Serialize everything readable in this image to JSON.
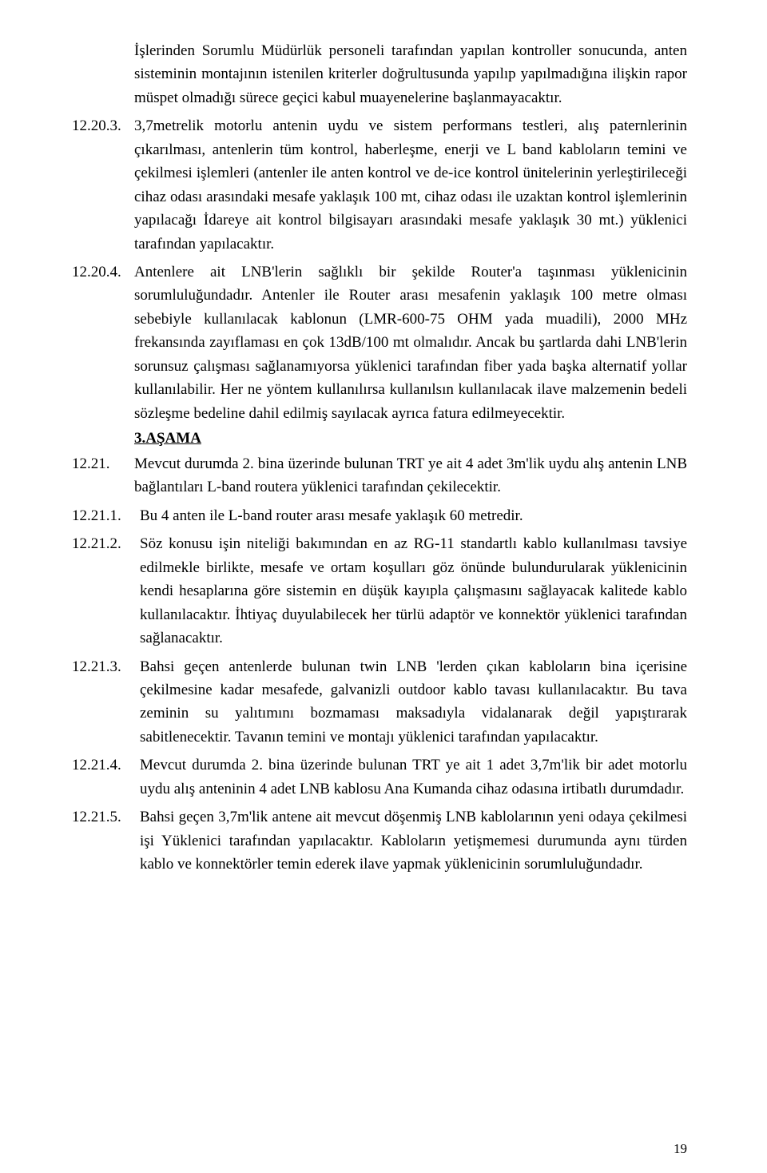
{
  "document": {
    "background_color": "#ffffff",
    "text_color": "#000000",
    "font_family": "Times New Roman",
    "body_font_size_pt": 14,
    "line_height": 1.55,
    "page_number": "19",
    "p_cont_1": "İşlerinden Sorumlu Müdürlük personeli tarafından yapılan kontroller sonucunda, anten sisteminin montajının istenilen kriterler doğrultusunda yapılıp yapılmadığına ilişkin rapor müspet olmadığı sürece geçici kabul muayenelerine başlanmayacaktır.",
    "i12_20_3_num": "12.20.3.",
    "i12_20_3": "3,7metrelik motorlu antenin uydu ve sistem performans testleri, alış paternlerinin çıkarılması, antenlerin tüm kontrol, haberleşme, enerji ve L band kabloların temini ve çekilmesi işlemleri (antenler ile anten kontrol ve de-ice kontrol ünitelerinin yerleştirileceği cihaz odası arasındaki mesafe yaklaşık 100 mt, cihaz odası ile uzaktan kontrol işlemlerinin yapılacağı İdareye ait kontrol bilgisayarı arasındaki mesafe yaklaşık 30 mt.) yüklenici tarafından yapılacaktır.",
    "i12_20_4_num": "12.20.4.",
    "i12_20_4": "Antenlere ait LNB'lerin sağlıklı bir şekilde Router'a taşınması yüklenicinin sorumluluğundadır. Antenler ile Router arası mesafenin yaklaşık 100 metre olması sebebiyle kullanılacak kablonun (LMR-600-75 OHM yada muadili), 2000 MHz frekansında zayıflaması en çok 13dB/100 mt olmalıdır. Ancak bu şartlarda dahi LNB'lerin sorunsuz çalışması sağlanamıyorsa yüklenici tarafından fiber yada başka alternatif yollar kullanılabilir. Her ne yöntem kullanılırsa kullanılsın kullanılacak ilave malzemenin bedeli sözleşme bedeline dahil edilmiş sayılacak ayrıca fatura edilmeyecektir.",
    "stage3": "3.AŞAMA",
    "i12_21_num": "12.21.",
    "i12_21": "Mevcut durumda 2. bina üzerinde bulunan TRT ye ait 4 adet 3m'lik uydu alış antenin LNB bağlantıları L-band routera yüklenici tarafından çekilecektir.",
    "i12_21_1_num": "12.21.1.",
    "i12_21_1": "Bu 4 anten ile L-band router arası mesafe yaklaşık 60 metredir.",
    "i12_21_2_num": "12.21.2.",
    "i12_21_2": "Söz konusu işin niteliği bakımından en az RG-11 standartlı kablo kullanılması tavsiye edilmekle birlikte, mesafe ve ortam koşulları göz önünde bulundurularak yüklenicinin kendi hesaplarına göre sistemin en düşük kayıpla çalışmasını sağlayacak kalitede kablo kullanılacaktır. İhtiyaç duyulabilecek her türlü adaptör ve konnektör yüklenici tarafından sağlanacaktır.",
    "i12_21_3_num": "12.21.3.",
    "i12_21_3": "Bahsi geçen antenlerde bulunan twin LNB 'lerden çıkan kabloların bina içerisine çekilmesine kadar mesafede, galvanizli outdoor kablo tavası kullanılacaktır. Bu tava zeminin su yalıtımını bozmaması maksadıyla vidalanarak değil yapıştırarak sabitlenecektir. Tavanın temini ve montajı yüklenici tarafından yapılacaktır.",
    "i12_21_4_num": "12.21.4.",
    "i12_21_4": "Mevcut durumda 2. bina üzerinde bulunan TRT ye ait 1 adet 3,7m'lik bir adet motorlu uydu alış anteninin 4 adet LNB kablosu Ana Kumanda cihaz odasına irtibatlı durumdadır.",
    "i12_21_5_num": "12.21.5.",
    "i12_21_5": "Bahsi geçen 3,7m'lik antene ait mevcut döşenmiş LNB kablolarının yeni odaya çekilmesi işi Yüklenici tarafından yapılacaktır. Kabloların yetişmemesi durumunda aynı türden kablo ve konnektörler temin ederek ilave yapmak yüklenicinin sorumluluğundadır."
  }
}
